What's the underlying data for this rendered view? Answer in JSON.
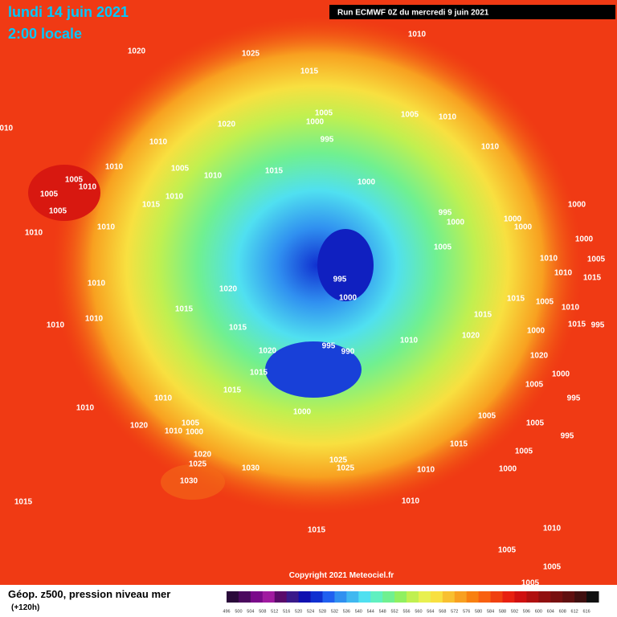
{
  "header": {
    "date": "lundi 14 juin 2021",
    "time": "2:00 locale",
    "run": "Run ECMWF 0Z du mercredi 9 juin 2021"
  },
  "copyright": "Copyright 2021 Meteociel.fr",
  "legend": {
    "title": "Géop. z500, pression niveau mer",
    "lead": "(+120h)",
    "levels": [
      496,
      500,
      504,
      508,
      512,
      516,
      520,
      524,
      528,
      532,
      536,
      540,
      544,
      548,
      552,
      556,
      560,
      564,
      568,
      572,
      576,
      580,
      584,
      588,
      592,
      596,
      600,
      604,
      608,
      612,
      616
    ],
    "colors": [
      "#2a0a3a",
      "#4b0a5e",
      "#7a0a8a",
      "#a01aa0",
      "#5a0a6a",
      "#3a1a8a",
      "#1010b0",
      "#1030d0",
      "#2060f0",
      "#3090f0",
      "#40b8f0",
      "#50e0f0",
      "#60f0c0",
      "#70f090",
      "#90f060",
      "#c0f050",
      "#e8f050",
      "#f8e040",
      "#f8c030",
      "#f8a020",
      "#f88010",
      "#f86010",
      "#f04010",
      "#e82010",
      "#d01010",
      "#b01010",
      "#901010",
      "#781010",
      "#601010",
      "#401010",
      "#101010"
    ]
  },
  "isobars": [
    "1020",
    "1025",
    "1010",
    "1015",
    "1010",
    "1020",
    "1005",
    "1000",
    "995",
    "1005",
    "1010",
    "1010",
    "1010",
    "1005",
    "1010",
    "1015",
    "1010",
    "1000",
    "1005",
    "1010",
    "1005",
    "1010",
    "1005",
    "1015",
    "995",
    "1000",
    "1000",
    "1000",
    "1000",
    "1010",
    "1010",
    "1005",
    "1000",
    "1005",
    "1010",
    "995",
    "1010",
    "1015",
    "1010",
    "1020",
    "1000",
    "1015",
    "1005",
    "1015",
    "1010",
    "1010",
    "1015",
    "1010",
    "1015",
    "1000",
    "1015",
    "995",
    "1020",
    "1010",
    "995",
    "990",
    "1020",
    "1020",
    "1015",
    "1000",
    "1015",
    "1005",
    "1010",
    "995",
    "1010",
    "1000",
    "1005",
    "1005",
    "1020",
    "1010",
    "1000",
    "1005",
    "995",
    "1015",
    "1005",
    "1020",
    "1025",
    "1025",
    "1030",
    "1025",
    "1010",
    "1000",
    "1030",
    "1015",
    "1010",
    "1015",
    "1010",
    "1005",
    "1005",
    "1005"
  ]
}
